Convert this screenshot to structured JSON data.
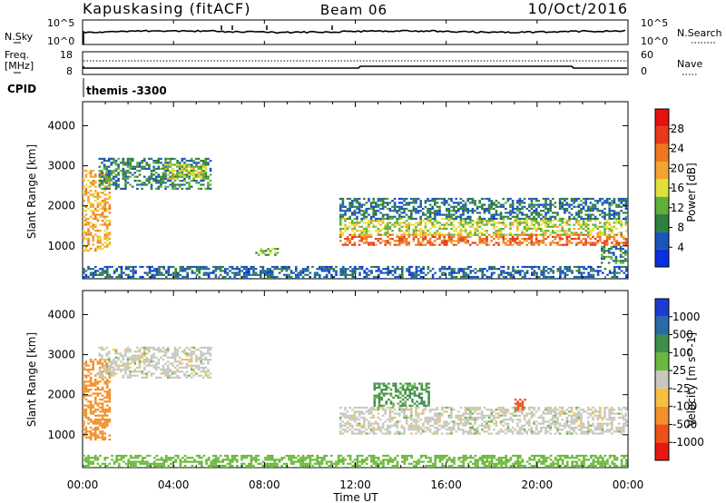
{
  "header": {
    "station": "Kapuskasing (fitACF)",
    "beam": "Beam 06",
    "date": "10/Oct/2016"
  },
  "noise_panel": {
    "left_label": "N.Sky",
    "right_label": "N.Search",
    "y_ticks": [
      "10^5",
      "10^0"
    ],
    "right_ticks": [
      "10^5",
      "10^0"
    ]
  },
  "freq_panel": {
    "left_label_1": "Freq.",
    "left_label_2": "[MHz]",
    "right_label": "Nave",
    "y_ticks": [
      "18",
      "8"
    ],
    "right_ticks": [
      "60",
      "0"
    ]
  },
  "cpid": {
    "label": "CPID",
    "value": "themis -3300"
  },
  "x_axis": {
    "label": "Time UT",
    "ticks": [
      "00:00",
      "04:00",
      "08:00",
      "12:00",
      "16:00",
      "20:00",
      "00:00"
    ]
  },
  "colors": {
    "power": [
      "#0a2fe0",
      "#1a55b8",
      "#2f7f3d",
      "#5fb03a",
      "#e3e03c",
      "#f0a532",
      "#ee7720",
      "#e83a1a",
      "#e51212"
    ],
    "velocity": [
      "#e8180f",
      "#ee5218",
      "#f2902a",
      "#f6c040",
      "#c8c8c0",
      "#6ab83c",
      "#3f8e4a",
      "#2a6aa6",
      "#1d3bd0"
    ],
    "ground_scatter": "#c8c8c0"
  },
  "chart_data": [
    {
      "type": "heatmap",
      "title": "Power",
      "ylabel": "Slant Range [km]",
      "xlabel": "Time UT",
      "ylim": [
        180,
        4600
      ],
      "y_ticks": [
        1000,
        2000,
        3000,
        4000
      ],
      "xlim_hours": [
        0,
        24
      ],
      "colorbar": {
        "label": "Power [dB]",
        "range": [
          0,
          32
        ],
        "ticks": [
          4,
          8,
          12,
          16,
          20,
          24,
          28
        ]
      },
      "regions": [
        {
          "t0": 0.0,
          "t1": 1.2,
          "r0": 900,
          "r1": 2900,
          "value": 22
        },
        {
          "t0": 0.7,
          "t1": 5.6,
          "r0": 2450,
          "r1": 3200,
          "value": 10
        },
        {
          "t0": 3.6,
          "t1": 5.4,
          "r0": 2700,
          "r1": 3050,
          "value": 17
        },
        {
          "t0": 7.6,
          "t1": 8.6,
          "r0": 800,
          "r1": 950,
          "value": 14
        },
        {
          "t0": 11.3,
          "t1": 24.0,
          "r0": 1050,
          "r1": 1300,
          "value": 27
        },
        {
          "t0": 11.3,
          "t1": 24.0,
          "r0": 1300,
          "r1": 1700,
          "value": 17
        },
        {
          "t0": 11.3,
          "t1": 24.0,
          "r0": 1700,
          "r1": 2200,
          "value": 8
        },
        {
          "t0": 22.8,
          "t1": 24.0,
          "r0": 600,
          "r1": 1000,
          "value": 10
        },
        {
          "t0": 0.0,
          "t1": 24.0,
          "r0": 200,
          "r1": 500,
          "value": 7
        }
      ]
    },
    {
      "type": "heatmap",
      "title": "Velocity",
      "ylabel": "Slant Range [km]",
      "xlabel": "Time UT",
      "ylim": [
        180,
        4600
      ],
      "y_ticks": [
        1000,
        2000,
        3000,
        4000
      ],
      "xlim_hours": [
        0,
        24
      ],
      "colorbar": {
        "label": "Velocity [m s^-1]",
        "ticks": [
          "1000",
          "500",
          "100",
          "25",
          "-25",
          "-100",
          "-500",
          "-1000"
        ]
      },
      "regions": [
        {
          "t0": 0.0,
          "t1": 1.2,
          "r0": 900,
          "r1": 2900,
          "value": -300
        },
        {
          "t0": 0.7,
          "t1": 5.6,
          "r0": 2450,
          "r1": 3200,
          "value": 0
        },
        {
          "t0": 11.3,
          "t1": 24.0,
          "r0": 1050,
          "r1": 1700,
          "value": 0
        },
        {
          "t0": 12.8,
          "t1": 15.2,
          "r0": 1750,
          "r1": 2300,
          "value": 120
        },
        {
          "t0": 19.0,
          "t1": 19.5,
          "r0": 1650,
          "r1": 1900,
          "value": -700
        },
        {
          "t0": 0.0,
          "t1": 24.0,
          "r0": 200,
          "r1": 500,
          "value": 60
        }
      ]
    }
  ]
}
